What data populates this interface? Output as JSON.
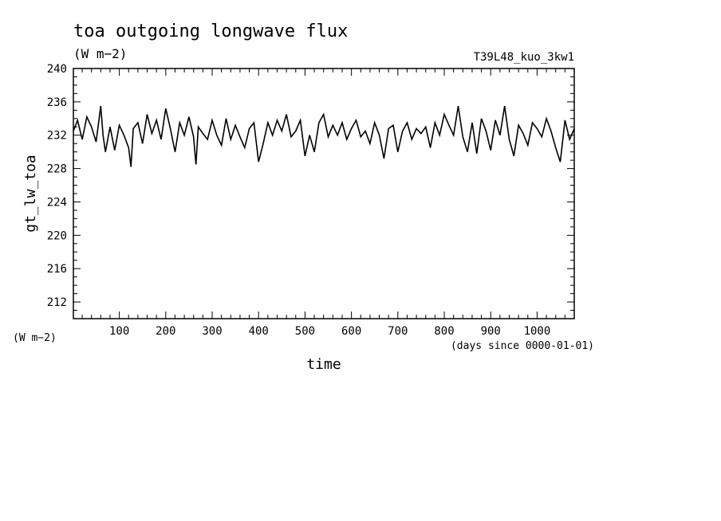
{
  "chart_data": {
    "type": "line",
    "title": "toa outgoing longwave flux",
    "subtitle": "(W m−2)",
    "run_label": "T39L48_kuo_3kw1",
    "ylabel": "gt_lw_toa",
    "yunit": "(W m−2)",
    "xlabel": "time",
    "xunit": "(days since 0000-01-01)",
    "xlim": [
      1,
      1080
    ],
    "ylim": [
      210,
      240
    ],
    "x_ticks": [
      100,
      200,
      300,
      400,
      500,
      600,
      700,
      800,
      900,
      1000
    ],
    "y_ticks": [
      212,
      216,
      220,
      224,
      228,
      232,
      236,
      240
    ],
    "grid": false,
    "series": [
      {
        "x": [
          1,
          10,
          20,
          30,
          40,
          50,
          60,
          65,
          70,
          75,
          80,
          90,
          100,
          110,
          120,
          125,
          130,
          140,
          150,
          160,
          170,
          180,
          190,
          200,
          210,
          220,
          230,
          240,
          250,
          260,
          265,
          270,
          280,
          290,
          300,
          310,
          320,
          330,
          340,
          350,
          360,
          370,
          380,
          390,
          400,
          410,
          420,
          430,
          440,
          450,
          460,
          470,
          480,
          490,
          500,
          510,
          520,
          530,
          540,
          550,
          560,
          570,
          580,
          590,
          600,
          610,
          620,
          630,
          640,
          650,
          660,
          670,
          680,
          690,
          700,
          710,
          720,
          730,
          740,
          750,
          760,
          770,
          780,
          790,
          800,
          810,
          820,
          830,
          840,
          850,
          860,
          870,
          880,
          890,
          900,
          910,
          920,
          930,
          940,
          950,
          960,
          970,
          980,
          990,
          1000,
          1010,
          1020,
          1030,
          1040,
          1050,
          1060,
          1070,
          1080
        ],
        "values": [
          232.5,
          233.8,
          231.5,
          234.2,
          233.0,
          231.2,
          235.5,
          232.0,
          230.0,
          231.5,
          233.0,
          230.2,
          233.2,
          232.0,
          230.5,
          228.2,
          232.8,
          233.5,
          231.0,
          234.5,
          232.2,
          233.8,
          231.5,
          235.2,
          232.8,
          230.0,
          233.5,
          232.0,
          234.2,
          231.8,
          228.5,
          233.0,
          232.2,
          231.5,
          233.8,
          232.0,
          230.8,
          234.0,
          231.5,
          233.2,
          231.8,
          230.5,
          232.8,
          233.5,
          228.8,
          231.0,
          233.5,
          232.0,
          233.8,
          232.5,
          234.5,
          231.8,
          232.5,
          233.8,
          229.5,
          232.0,
          230.0,
          233.5,
          234.5,
          231.8,
          233.2,
          232.0,
          233.5,
          231.5,
          232.8,
          233.8,
          231.8,
          232.5,
          231.0,
          233.5,
          232.0,
          229.2,
          232.8,
          233.2,
          230.0,
          232.5,
          233.5,
          231.5,
          232.8,
          232.2,
          233.0,
          230.5,
          233.5,
          232.0,
          234.5,
          233.2,
          232.0,
          235.5,
          231.8,
          230.0,
          233.5,
          229.8,
          234.0,
          232.5,
          230.2,
          233.8,
          232.0,
          235.5,
          231.5,
          229.5,
          233.2,
          232.2,
          230.8,
          233.5,
          232.8,
          231.8,
          234.0,
          232.5,
          230.5,
          228.8,
          233.8,
          231.5,
          232.8
        ]
      }
    ]
  }
}
